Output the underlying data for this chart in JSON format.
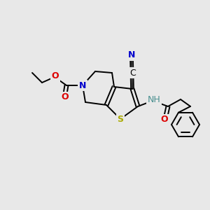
{
  "background_color": "#e8e8e8",
  "atom_colors": {
    "C": "#000000",
    "N": "#0000cc",
    "O": "#dd0000",
    "S": "#aaaa00",
    "NH": "#4a9090",
    "CN_N": "#0000cc"
  },
  "figsize": [
    3.0,
    3.0
  ],
  "dpi": 100
}
